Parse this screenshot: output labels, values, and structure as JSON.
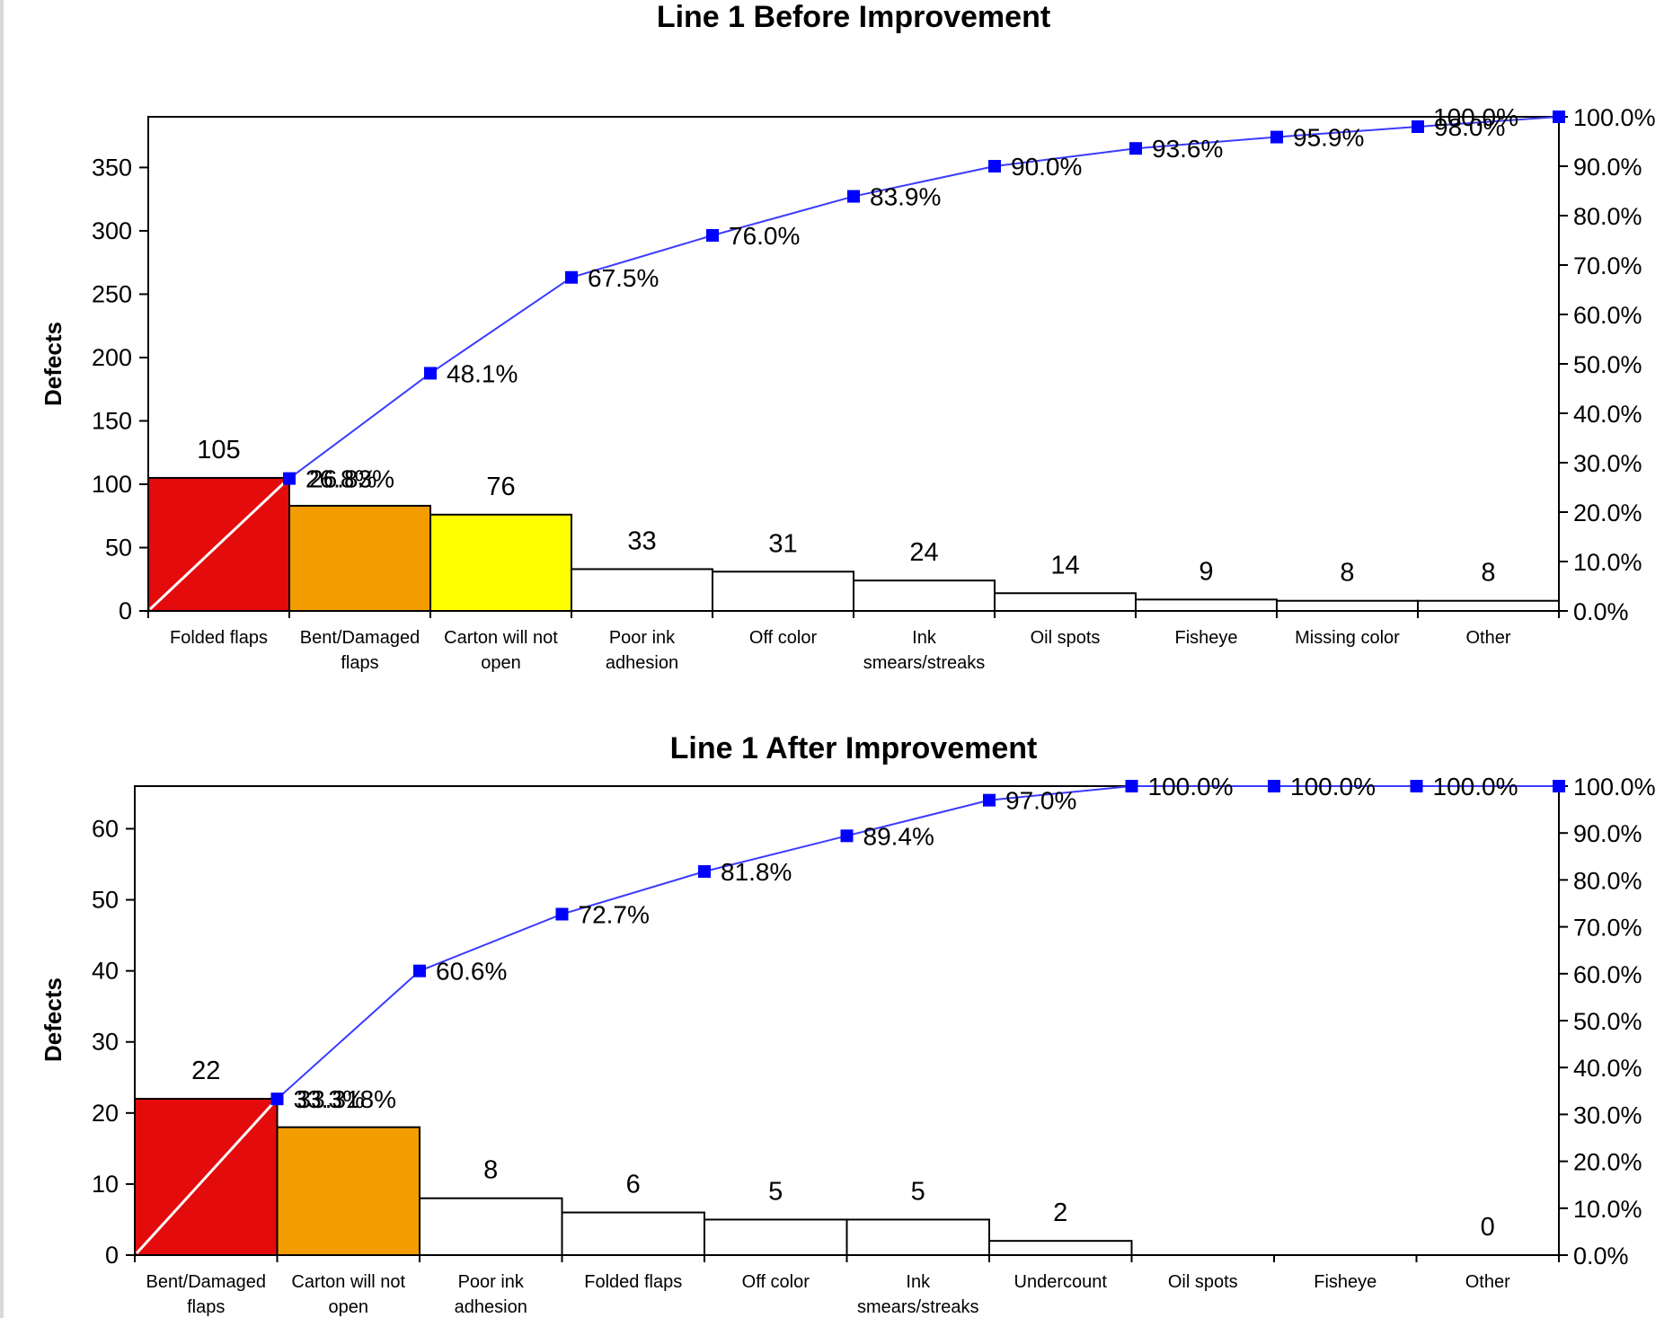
{
  "chart_data": [
    {
      "type": "bar",
      "title": "Line 1 Before Improvement",
      "ylabel": "Defects",
      "ylim": [
        0,
        390
      ],
      "y_ticks": [
        "0",
        "50",
        "100",
        "150",
        "200",
        "250",
        "300",
        "350"
      ],
      "y2_ticks": [
        "0.0%",
        "10.0%",
        "20.0%",
        "30.0%",
        "40.0%",
        "50.0%",
        "60.0%",
        "70.0%",
        "80.0%",
        "90.0%",
        "100.0%"
      ],
      "categories": [
        [
          "Folded flaps"
        ],
        [
          "Bent/Damaged",
          "flaps"
        ],
        [
          "Carton will not",
          "open"
        ],
        [
          "Poor ink",
          "adhesion"
        ],
        [
          "Off color"
        ],
        [
          "Ink",
          "smears/streaks"
        ],
        [
          "Oil spots"
        ],
        [
          "Fisheye"
        ],
        [
          "Missing color"
        ],
        [
          "Other"
        ]
      ],
      "series": [
        {
          "values": [
            105,
            83,
            76,
            33,
            31,
            24,
            14,
            9,
            8,
            8
          ],
          "labels": [
            "105",
            "",
            "76",
            "33",
            "31",
            "24",
            "14",
            "9",
            "8",
            "8"
          ]
        },
        {
          "values": [
            26.8,
            48.1,
            67.5,
            76.0,
            83.9,
            90.0,
            93.6,
            95.9,
            98.0,
            100.0
          ],
          "labels": [
            "26.8%",
            "48.1%",
            "67.5%",
            "76.0%",
            "83.9%",
            "90.0%",
            "93.6%",
            "95.9%",
            "98.0%",
            "100.0%"
          ]
        }
      ],
      "overlap_label": "26.83%",
      "bar_colors": [
        "#e30b0b",
        "#f39c00",
        "#ffff00",
        "#ffffff",
        "#ffffff",
        "#ffffff",
        "#ffffff",
        "#ffffff",
        "#ffffff",
        "#ffffff"
      ],
      "line_color": "#3b3bff"
    },
    {
      "type": "bar",
      "title": "Line 1 After Improvement",
      "ylabel": "Defects",
      "ylim": [
        0,
        66
      ],
      "y_ticks": [
        "0",
        "10",
        "20",
        "30",
        "40",
        "50",
        "60"
      ],
      "y2_ticks": [
        "0.0%",
        "10.0%",
        "20.0%",
        "30.0%",
        "40.0%",
        "50.0%",
        "60.0%",
        "70.0%",
        "80.0%",
        "90.0%",
        "100.0%"
      ],
      "categories": [
        [
          "Bent/Damaged",
          "flaps"
        ],
        [
          "Carton will not",
          "open"
        ],
        [
          "Poor ink",
          "adhesion"
        ],
        [
          "Folded flaps"
        ],
        [
          "Off color"
        ],
        [
          "Ink",
          "smears/streaks"
        ],
        [
          "Undercount"
        ],
        [
          "Oil spots"
        ],
        [
          "Fisheye"
        ],
        [
          "Other"
        ]
      ],
      "series": [
        {
          "values": [
            22,
            18,
            8,
            6,
            5,
            5,
            2,
            0,
            0,
            0
          ],
          "labels": [
            "22",
            "",
            "8",
            "6",
            "5",
            "5",
            "2",
            "",
            "",
            "0"
          ]
        },
        {
          "values": [
            33.3,
            60.6,
            72.7,
            81.8,
            89.4,
            97.0,
            100.0,
            100.0,
            100.0,
            100.0
          ],
          "labels": [
            "33.3%",
            "60.6%",
            "72.7%",
            "81.8%",
            "89.4%",
            "97.0%",
            "100.0%",
            "100.0%",
            "100.0%",
            ""
          ]
        }
      ],
      "overlap_label": "33.318%",
      "bar_colors": [
        "#e30b0b",
        "#f39c00",
        "#ffffff",
        "#ffffff",
        "#ffffff",
        "#ffffff",
        "#ffffff",
        "#ffffff",
        "#ffffff",
        "#ffffff"
      ],
      "line_color": "#3b3bff"
    }
  ]
}
